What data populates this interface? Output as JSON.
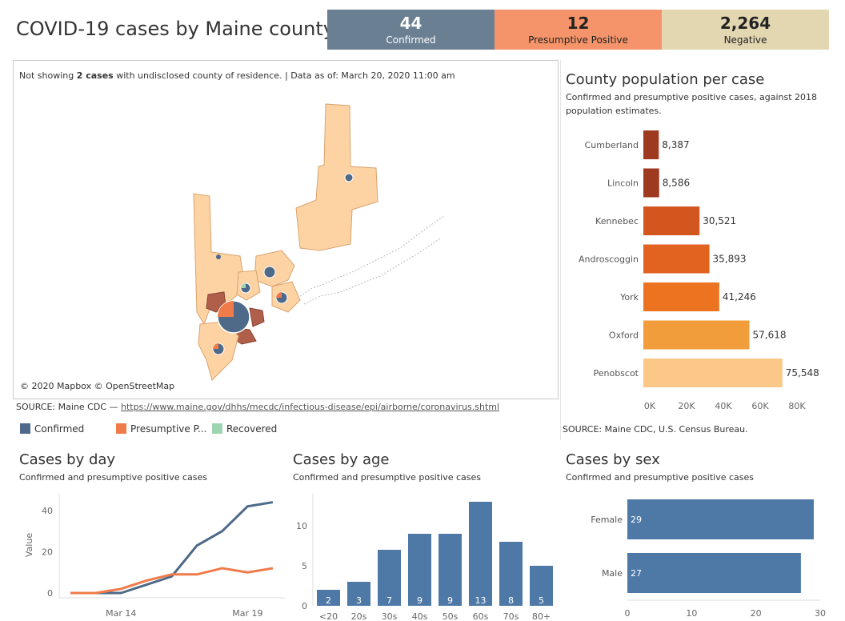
{
  "header": {
    "title": "COVID-19 cases by Maine county",
    "kpis": {
      "confirmed": {
        "value": "44",
        "label": "Confirmed",
        "color": "#6b7f92"
      },
      "presumptive": {
        "value": "12",
        "label": "Presumptive Positive",
        "color": "#f5946a"
      },
      "negative": {
        "value": "2,264",
        "label": "Negative",
        "color": "#e2d7b1"
      }
    }
  },
  "map": {
    "note_prefix": "Not showing ",
    "note_bold": "2 cases",
    "note_suffix": " with undisclosed county of residence. | Data as of: ",
    "note_date": "March 20, 2020 11:00 am",
    "attribution": "© 2020 Mapbox  © OpenStreetMap",
    "source_prefix": "SOURCE: Maine CDC — ",
    "source_link": "https://www.maine.gov/dhhs/mecdc/infectious-disease/epi/airborne/coronavirus.shtml",
    "legend": [
      {
        "label": "Confirmed",
        "color": "#4e6a88"
      },
      {
        "label": "Presumptive P...",
        "color": "#f07b4a"
      },
      {
        "label": "Recovered",
        "color": "#9fd4b3"
      }
    ]
  },
  "population": {
    "title": "County population per case",
    "subtitle_line1": "Confirmed and presumptive positive cases, against 2018",
    "subtitle_line2": "population estimates.",
    "source": "SOURCE: Maine CDC, U.S. Census Bureau.",
    "chart_data": {
      "type": "bar",
      "orientation": "horizontal",
      "categories": [
        "Cumberland",
        "Lincoln",
        "Kennebec",
        "Androscoggin",
        "York",
        "Oxford",
        "Penobscot"
      ],
      "values": [
        8387,
        8586,
        30521,
        35893,
        41246,
        57618,
        75548
      ],
      "value_labels": [
        "8,387",
        "8,586",
        "30,521",
        "35,893",
        "41,246",
        "57,618",
        "75,548"
      ],
      "colors": [
        "#9e3a20",
        "#9e3a20",
        "#d4561f",
        "#e2621f",
        "#ec7421",
        "#f29d3c",
        "#fcc888"
      ],
      "xlim": [
        0,
        80000
      ],
      "xticks": [
        0,
        20000,
        40000,
        60000,
        80000
      ],
      "xtick_labels": [
        "0K",
        "20K",
        "40K",
        "60K",
        "80K"
      ]
    }
  },
  "by_day": {
    "title": "Cases by day",
    "subtitle": "Confirmed and presumptive positive cases",
    "chart_data": {
      "type": "line",
      "ylabel": "Value",
      "ylim": [
        0,
        45
      ],
      "yticks": [
        0,
        20,
        40
      ],
      "x": [
        "Mar 12",
        "Mar 13",
        "Mar 14",
        "Mar 15",
        "Mar 16",
        "Mar 17",
        "Mar 18",
        "Mar 19",
        "Mar 20"
      ],
      "xtick_labels": [
        "Mar 14",
        "Mar 19"
      ],
      "series": [
        {
          "color": "#4e6a88",
          "values": [
            0,
            0,
            0,
            4,
            8,
            23,
            30,
            42,
            44
          ]
        },
        {
          "color": "#f07b4a",
          "values": [
            0,
            0,
            2,
            6,
            9,
            9,
            12,
            10,
            12
          ]
        }
      ]
    }
  },
  "by_age": {
    "title": "Cases by age",
    "subtitle": "Confirmed and presumptive positive cases",
    "chart_data": {
      "type": "bar",
      "categories": [
        "<20",
        "20s",
        "30s",
        "40s",
        "50s",
        "60s",
        "70s",
        "80+"
      ],
      "values": [
        2,
        3,
        7,
        9,
        9,
        13,
        8,
        5
      ],
      "ylim": [
        0,
        14
      ],
      "yticks": [
        0,
        5,
        10
      ],
      "color": "#4e79a7"
    }
  },
  "by_sex": {
    "title": "Cases by sex",
    "subtitle": "Confirmed and presumptive positive cases",
    "chart_data": {
      "type": "bar",
      "orientation": "horizontal",
      "categories": [
        "Female",
        "Male"
      ],
      "values": [
        29,
        27
      ],
      "xlim": [
        0,
        30
      ],
      "xticks": [
        0,
        10,
        20,
        30
      ],
      "color": "#4e79a7"
    }
  }
}
